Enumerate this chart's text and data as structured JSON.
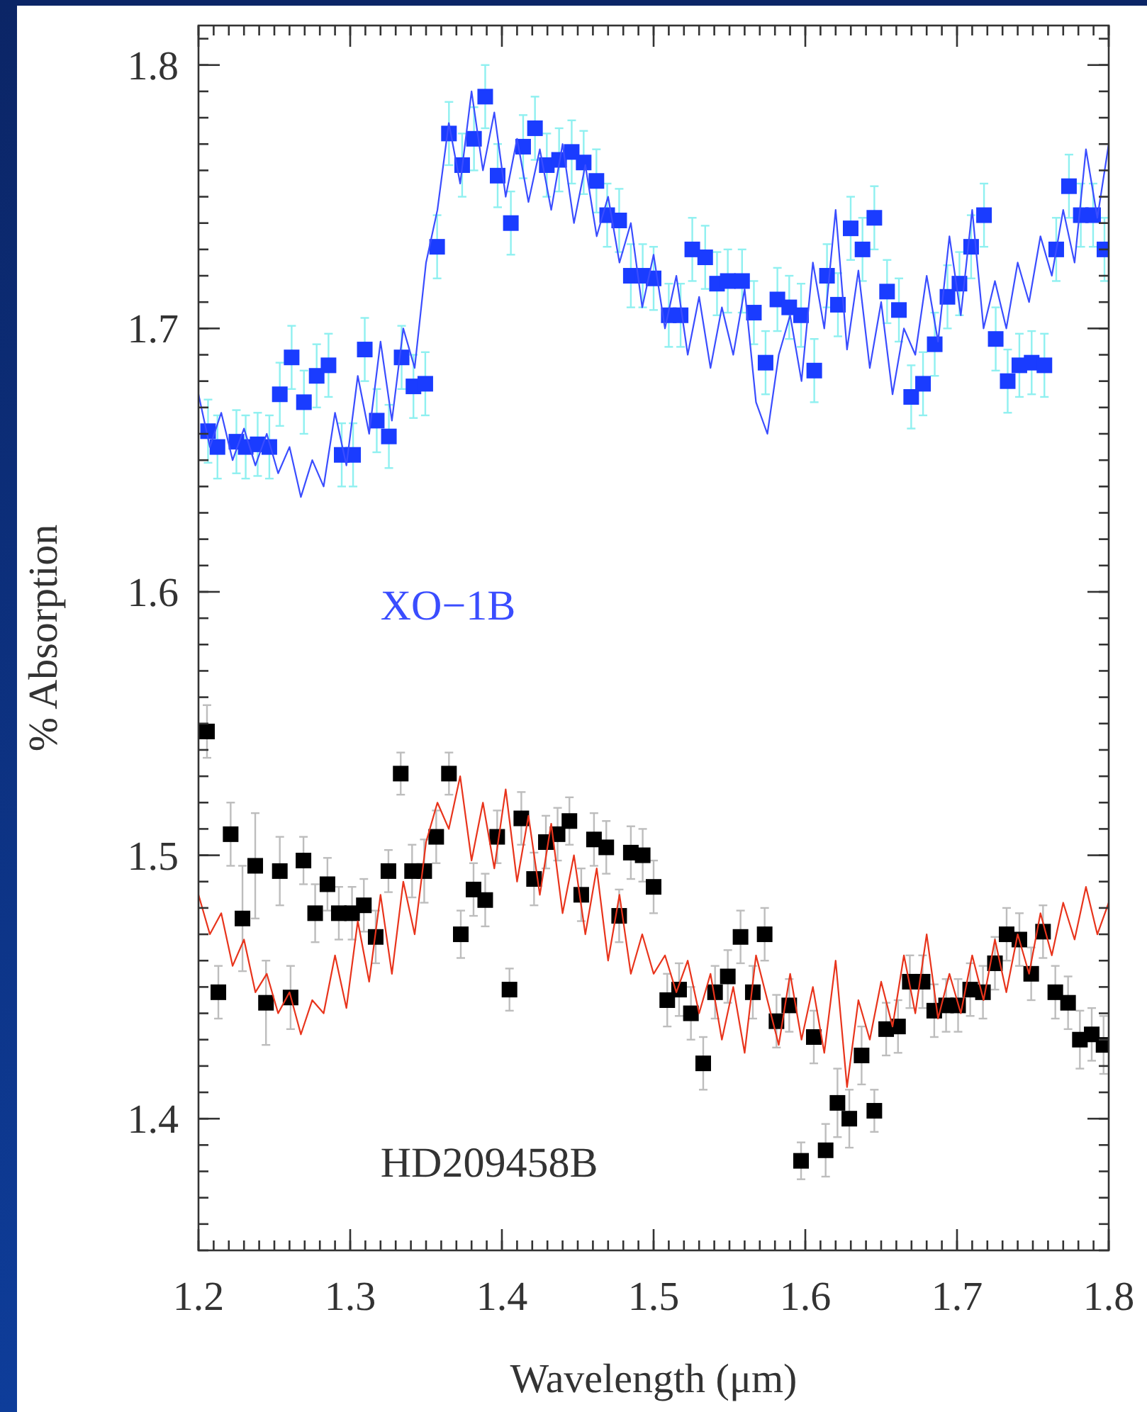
{
  "chart_data": {
    "type": "scatter",
    "xlabel": "Wavelength (μm)",
    "ylabel": "% Absorption",
    "xlim": [
      1.2,
      1.8
    ],
    "ylim": [
      1.35,
      1.815
    ],
    "xticks": [
      1.2,
      1.3,
      1.4,
      1.5,
      1.6,
      1.7,
      1.8
    ],
    "yticks": [
      1.4,
      1.5,
      1.6,
      1.7,
      1.8
    ],
    "grid": false,
    "series": [
      {
        "name": "XO−1B",
        "marker": "square",
        "color": "#1a3cff",
        "x": [
          1.2063,
          1.2125,
          1.225,
          1.2311,
          1.239,
          1.2467,
          1.2536,
          1.2614,
          1.2695,
          1.2779,
          1.2857,
          1.2944,
          1.3019,
          1.3096,
          1.3175,
          1.3255,
          1.3339,
          1.3417,
          1.3495,
          1.3573,
          1.3651,
          1.3738,
          1.3816,
          1.389,
          1.3972,
          1.4059,
          1.414,
          1.4218,
          1.4296,
          1.4377,
          1.446,
          1.4539,
          1.4623,
          1.4694,
          1.4773,
          1.485,
          1.4928,
          1.5,
          1.51,
          1.5178,
          1.5255,
          1.534,
          1.5418,
          1.5489,
          1.5583,
          1.5661,
          1.5738,
          1.5816,
          1.5894,
          1.5972,
          1.6059,
          1.6143,
          1.6215,
          1.6299,
          1.6377,
          1.6455,
          1.6539,
          1.6617,
          1.6698,
          1.6776,
          1.6853,
          1.6937,
          1.7016,
          1.7093,
          1.7178,
          1.7255,
          1.7334,
          1.7411,
          1.7492,
          1.7576,
          1.7654,
          1.7738,
          1.7816,
          1.7897,
          1.7972
        ],
        "values": [
          1.661,
          1.655,
          1.657,
          1.655,
          1.656,
          1.655,
          1.675,
          1.689,
          1.672,
          1.682,
          1.686,
          1.652,
          1.652,
          1.692,
          1.665,
          1.659,
          1.689,
          1.678,
          1.679,
          1.731,
          1.774,
          1.762,
          1.772,
          1.788,
          1.758,
          1.74,
          1.769,
          1.776,
          1.762,
          1.764,
          1.767,
          1.763,
          1.756,
          1.743,
          1.741,
          1.72,
          1.72,
          1.719,
          1.705,
          1.705,
          1.73,
          1.727,
          1.717,
          1.718,
          1.718,
          1.706,
          1.687,
          1.711,
          1.708,
          1.705,
          1.684,
          1.72,
          1.709,
          1.738,
          1.73,
          1.742,
          1.714,
          1.707,
          1.674,
          1.679,
          1.694,
          1.712,
          1.717,
          1.731,
          1.743,
          1.696,
          1.68,
          1.686,
          1.687,
          1.686,
          1.73,
          1.754,
          1.743,
          1.743,
          1.73
        ],
        "errors": [
          0.012,
          0.012,
          0.012,
          0.012,
          0.012,
          0.012,
          0.012,
          0.012,
          0.012,
          0.012,
          0.012,
          0.012,
          0.012,
          0.012,
          0.012,
          0.012,
          0.012,
          0.012,
          0.012,
          0.012,
          0.012,
          0.012,
          0.012,
          0.012,
          0.012,
          0.012,
          0.012,
          0.012,
          0.012,
          0.012,
          0.012,
          0.012,
          0.012,
          0.012,
          0.012,
          0.012,
          0.012,
          0.012,
          0.012,
          0.012,
          0.012,
          0.012,
          0.012,
          0.012,
          0.012,
          0.012,
          0.012,
          0.012,
          0.012,
          0.012,
          0.012,
          0.012,
          0.012,
          0.012,
          0.012,
          0.012,
          0.012,
          0.012,
          0.012,
          0.012,
          0.012,
          0.012,
          0.012,
          0.012,
          0.012,
          0.012,
          0.012,
          0.012,
          0.012,
          0.012,
          0.012,
          0.012,
          0.012,
          0.012,
          0.012
        ]
      },
      {
        "type": "line",
        "marker": "none",
        "color": "#3a4dff",
        "x": [
          1.2,
          1.2075,
          1.215,
          1.2225,
          1.23,
          1.2375,
          1.245,
          1.2525,
          1.26,
          1.2675,
          1.275,
          1.2825,
          1.29,
          1.2975,
          1.305,
          1.3125,
          1.32,
          1.3275,
          1.335,
          1.3425,
          1.35,
          1.3575,
          1.365,
          1.3725,
          1.38,
          1.3875,
          1.395,
          1.4025,
          1.41,
          1.4175,
          1.425,
          1.4325,
          1.44,
          1.4475,
          1.455,
          1.4625,
          1.47,
          1.4775,
          1.485,
          1.4925,
          1.5,
          1.5075,
          1.515,
          1.5225,
          1.53,
          1.5375,
          1.545,
          1.5525,
          1.56,
          1.5675,
          1.575,
          1.5825,
          1.59,
          1.5975,
          1.605,
          1.6125,
          1.62,
          1.6275,
          1.635,
          1.6425,
          1.65,
          1.6575,
          1.665,
          1.6725,
          1.68,
          1.6875,
          1.695,
          1.7025,
          1.71,
          1.7175,
          1.725,
          1.7325,
          1.74,
          1.7475,
          1.755,
          1.7625,
          1.77,
          1.7775,
          1.785,
          1.7925,
          1.8
        ],
        "values": [
          1.675,
          1.655,
          1.668,
          1.65,
          1.662,
          1.648,
          1.66,
          1.645,
          1.655,
          1.636,
          1.65,
          1.64,
          1.668,
          1.648,
          1.682,
          1.66,
          1.695,
          1.665,
          1.7,
          1.685,
          1.725,
          1.745,
          1.778,
          1.755,
          1.79,
          1.76,
          1.782,
          1.75,
          1.772,
          1.748,
          1.768,
          1.745,
          1.77,
          1.74,
          1.762,
          1.735,
          1.75,
          1.725,
          1.74,
          1.708,
          1.728,
          1.7,
          1.72,
          1.69,
          1.712,
          1.685,
          1.708,
          1.69,
          1.715,
          1.672,
          1.66,
          1.69,
          1.705,
          1.68,
          1.725,
          1.7,
          1.745,
          1.692,
          1.722,
          1.685,
          1.71,
          1.675,
          1.7,
          1.69,
          1.72,
          1.695,
          1.735,
          1.705,
          1.745,
          1.7,
          1.718,
          1.7,
          1.725,
          1.71,
          1.735,
          1.72,
          1.745,
          1.725,
          1.768,
          1.742,
          1.77
        ]
      },
      {
        "name": "HD209458B",
        "marker": "square",
        "color": "#000000",
        "x": [
          1.2056,
          1.2131,
          1.2212,
          1.229,
          1.2374,
          1.2445,
          1.2536,
          1.2607,
          1.2692,
          1.2769,
          1.285,
          1.2925,
          1.3012,
          1.309,
          1.3168,
          1.3252,
          1.3333,
          1.3408,
          1.3488,
          1.3567,
          1.3651,
          1.3729,
          1.3813,
          1.389,
          1.3969,
          1.405,
          1.4128,
          1.4212,
          1.429,
          1.4367,
          1.4445,
          1.4523,
          1.4607,
          1.4688,
          1.4773,
          1.485,
          1.4928,
          1.5,
          1.509,
          1.5168,
          1.5246,
          1.5327,
          1.5405,
          1.5489,
          1.5573,
          1.5654,
          1.5732,
          1.581,
          1.5894,
          1.5972,
          1.6056,
          1.6134,
          1.6212,
          1.629,
          1.6371,
          1.6455,
          1.6533,
          1.6611,
          1.6689,
          1.6773,
          1.685,
          1.6928,
          1.7007,
          1.7087,
          1.7171,
          1.725,
          1.7327,
          1.7411,
          1.7489,
          1.7567,
          1.7648,
          1.7732,
          1.781,
          1.7888,
          1.7966
        ],
        "values": [
          1.547,
          1.448,
          1.508,
          1.476,
          1.496,
          1.444,
          1.494,
          1.446,
          1.498,
          1.478,
          1.489,
          1.478,
          1.478,
          1.481,
          1.469,
          1.494,
          1.531,
          1.494,
          1.494,
          1.507,
          1.531,
          1.47,
          1.487,
          1.483,
          1.507,
          1.449,
          1.514,
          1.491,
          1.505,
          1.508,
          1.513,
          1.485,
          1.506,
          1.503,
          1.477,
          1.501,
          1.5,
          1.488,
          1.445,
          1.449,
          1.44,
          1.421,
          1.448,
          1.454,
          1.469,
          1.448,
          1.47,
          1.437,
          1.443,
          1.384,
          1.431,
          1.388,
          1.406,
          1.4,
          1.424,
          1.403,
          1.434,
          1.435,
          1.452,
          1.452,
          1.441,
          1.443,
          1.443,
          1.449,
          1.448,
          1.459,
          1.47,
          1.468,
          1.455,
          1.471,
          1.448,
          1.444,
          1.43,
          1.432,
          1.428
        ],
        "errors": [
          0.01,
          0.01,
          0.012,
          0.02,
          0.02,
          0.016,
          0.013,
          0.012,
          0.009,
          0.011,
          0.01,
          0.01,
          0.01,
          0.01,
          0.01,
          0.008,
          0.008,
          0.01,
          0.012,
          0.01,
          0.008,
          0.009,
          0.01,
          0.01,
          0.01,
          0.008,
          0.01,
          0.01,
          0.01,
          0.01,
          0.009,
          0.01,
          0.01,
          0.01,
          0.01,
          0.01,
          0.01,
          0.01,
          0.01,
          0.01,
          0.01,
          0.01,
          0.01,
          0.01,
          0.01,
          0.01,
          0.01,
          0.01,
          0.01,
          0.007,
          0.01,
          0.01,
          0.013,
          0.011,
          0.011,
          0.008,
          0.01,
          0.01,
          0.01,
          0.01,
          0.01,
          0.01,
          0.01,
          0.01,
          0.01,
          0.01,
          0.01,
          0.01,
          0.01,
          0.01,
          0.01,
          0.01,
          0.011,
          0.01,
          0.011
        ]
      },
      {
        "type": "line",
        "marker": "none",
        "color": "#e8341c",
        "x": [
          1.2,
          1.2075,
          1.215,
          1.2225,
          1.23,
          1.2375,
          1.245,
          1.2525,
          1.26,
          1.2675,
          1.275,
          1.2825,
          1.29,
          1.2975,
          1.305,
          1.3125,
          1.32,
          1.3275,
          1.335,
          1.3425,
          1.35,
          1.3575,
          1.365,
          1.3725,
          1.38,
          1.3875,
          1.395,
          1.4025,
          1.41,
          1.4175,
          1.425,
          1.4325,
          1.44,
          1.4475,
          1.455,
          1.4625,
          1.47,
          1.4775,
          1.485,
          1.4925,
          1.5,
          1.5075,
          1.515,
          1.5225,
          1.53,
          1.5375,
          1.545,
          1.5525,
          1.56,
          1.5675,
          1.575,
          1.5825,
          1.59,
          1.5975,
          1.605,
          1.6125,
          1.62,
          1.6275,
          1.635,
          1.6425,
          1.65,
          1.6575,
          1.665,
          1.6725,
          1.68,
          1.6875,
          1.695,
          1.7025,
          1.71,
          1.7175,
          1.725,
          1.7325,
          1.74,
          1.7475,
          1.755,
          1.7625,
          1.77,
          1.7775,
          1.785,
          1.7925,
          1.8
        ],
        "values": [
          1.485,
          1.47,
          1.478,
          1.458,
          1.468,
          1.448,
          1.455,
          1.44,
          1.448,
          1.432,
          1.445,
          1.44,
          1.462,
          1.442,
          1.475,
          1.452,
          1.485,
          1.455,
          1.49,
          1.47,
          1.505,
          1.52,
          1.51,
          1.53,
          1.498,
          1.52,
          1.495,
          1.525,
          1.49,
          1.515,
          1.485,
          1.512,
          1.478,
          1.5,
          1.47,
          1.495,
          1.46,
          1.485,
          1.455,
          1.47,
          1.455,
          1.462,
          1.448,
          1.46,
          1.44,
          1.455,
          1.43,
          1.45,
          1.425,
          1.462,
          1.445,
          1.428,
          1.455,
          1.43,
          1.45,
          1.425,
          1.46,
          1.412,
          1.445,
          1.43,
          1.452,
          1.435,
          1.462,
          1.44,
          1.47,
          1.438,
          1.455,
          1.44,
          1.462,
          1.445,
          1.468,
          1.448,
          1.47,
          1.455,
          1.478,
          1.462,
          1.482,
          1.468,
          1.488,
          1.47,
          1.482
        ]
      }
    ]
  }
}
